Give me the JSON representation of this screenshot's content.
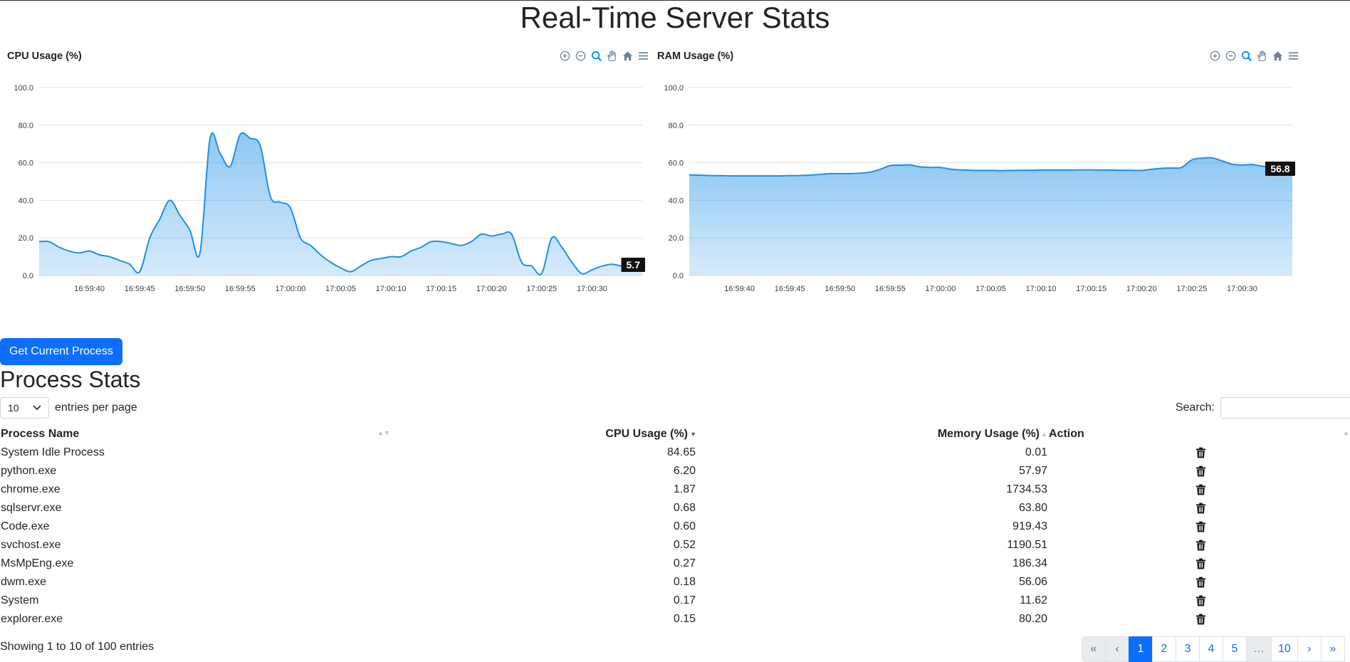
{
  "page": {
    "title": "Real-Time Server Stats"
  },
  "charts": [
    {
      "id": "cpu",
      "title": "CPU Usage (%)",
      "current_label": "5.7",
      "toolbar": [
        "zoom-in-icon",
        "zoom-out-icon",
        "zoom-selection-icon",
        "pan-hand-icon",
        "reset-home-icon",
        "menu-icon"
      ]
    },
    {
      "id": "ram",
      "title": "RAM Usage (%)",
      "current_label": "56.8",
      "toolbar": [
        "zoom-in-icon",
        "zoom-out-icon",
        "zoom-selection-icon",
        "pan-hand-icon",
        "reset-home-icon",
        "menu-icon"
      ]
    }
  ],
  "chart_data": [
    {
      "type": "area",
      "title": "CPU Usage (%)",
      "y_ticks": [
        "0.0",
        "20.0",
        "40.0",
        "60.0",
        "80.0",
        "100.0"
      ],
      "ylim": [
        0,
        100
      ],
      "x_range": [
        "16:59:35",
        "17:00:35"
      ],
      "x_ticks": [
        "16:59:40",
        "16:59:45",
        "16:59:50",
        "16:59:55",
        "17:00:00",
        "17:00:05",
        "17:00:10",
        "17:00:15",
        "17:00:20",
        "17:00:25",
        "17:00:30"
      ],
      "grid": true,
      "color": "#1e90e8",
      "x": [
        "16:59:35",
        "16:59:36",
        "16:59:37",
        "16:59:38",
        "16:59:39",
        "16:59:40",
        "16:59:41",
        "16:59:42",
        "16:59:43",
        "16:59:44",
        "16:59:45",
        "16:59:46",
        "16:59:47",
        "16:59:48",
        "16:59:49",
        "16:59:50",
        "16:59:51",
        "16:59:52",
        "16:59:53",
        "16:59:54",
        "16:59:55",
        "16:59:56",
        "16:59:57",
        "16:59:58",
        "16:59:59",
        "17:00:00",
        "17:00:01",
        "17:00:02",
        "17:00:03",
        "17:00:04",
        "17:00:05",
        "17:00:06",
        "17:00:07",
        "17:00:08",
        "17:00:09",
        "17:00:10",
        "17:00:11",
        "17:00:12",
        "17:00:13",
        "17:00:14",
        "17:00:15",
        "17:00:16",
        "17:00:17",
        "17:00:18",
        "17:00:19",
        "17:00:20",
        "17:00:21",
        "17:00:22",
        "17:00:23",
        "17:00:24",
        "17:00:25",
        "17:00:26",
        "17:00:27",
        "17:00:28",
        "17:00:29",
        "17:00:30",
        "17:00:31",
        "17:00:32",
        "17:00:33",
        "17:00:34",
        "17:00:35"
      ],
      "values": [
        18,
        18,
        15,
        13,
        12,
        13,
        11,
        10,
        8,
        6,
        2,
        20,
        30,
        40,
        32,
        24,
        12,
        73,
        65,
        58,
        75,
        73,
        69,
        42,
        39,
        36,
        20,
        16,
        11,
        7,
        4,
        2,
        5,
        8,
        9,
        10,
        10,
        13,
        15,
        18,
        18,
        17,
        16,
        18,
        22,
        21,
        22,
        22,
        7,
        5,
        1,
        20,
        15,
        7,
        1,
        3,
        5,
        6,
        5,
        6,
        5.7
      ]
    },
    {
      "type": "area",
      "title": "RAM Usage (%)",
      "y_ticks": [
        "0.0",
        "20.0",
        "40.0",
        "60.0",
        "80.0",
        "100.0"
      ],
      "ylim": [
        0,
        100
      ],
      "x_range": [
        "16:59:35",
        "17:00:35"
      ],
      "x_ticks": [
        "16:59:40",
        "16:59:45",
        "16:59:50",
        "16:59:55",
        "17:00:00",
        "17:00:05",
        "17:00:10",
        "17:00:15",
        "17:00:20",
        "17:00:25",
        "17:00:30"
      ],
      "grid": true,
      "color": "#1e90e8",
      "x": [
        "16:59:35",
        "16:59:36",
        "16:59:37",
        "16:59:38",
        "16:59:39",
        "16:59:40",
        "16:59:41",
        "16:59:42",
        "16:59:43",
        "16:59:44",
        "16:59:45",
        "16:59:46",
        "16:59:47",
        "16:59:48",
        "16:59:49",
        "16:59:50",
        "16:59:51",
        "16:59:52",
        "16:59:53",
        "16:59:54",
        "16:59:55",
        "16:59:56",
        "16:59:57",
        "16:59:58",
        "16:59:59",
        "17:00:00",
        "17:00:01",
        "17:00:02",
        "17:00:03",
        "17:00:04",
        "17:00:05",
        "17:00:06",
        "17:00:07",
        "17:00:08",
        "17:00:09",
        "17:00:10",
        "17:00:11",
        "17:00:12",
        "17:00:13",
        "17:00:14",
        "17:00:15",
        "17:00:16",
        "17:00:17",
        "17:00:18",
        "17:00:19",
        "17:00:20",
        "17:00:21",
        "17:00:22",
        "17:00:23",
        "17:00:24",
        "17:00:25",
        "17:00:26",
        "17:00:27",
        "17:00:28",
        "17:00:29",
        "17:00:30",
        "17:00:31",
        "17:00:32",
        "17:00:33",
        "17:00:34",
        "17:00:35"
      ],
      "values": [
        53.5,
        53.4,
        53.2,
        53.1,
        53,
        53,
        53,
        53,
        53,
        53,
        53.1,
        53.2,
        53.4,
        53.8,
        54.2,
        54.2,
        54.2,
        54.4,
        55,
        56.5,
        58.5,
        58.7,
        58.8,
        57.8,
        57.5,
        57.5,
        56.6,
        56.2,
        56,
        55.9,
        55.9,
        55.8,
        55.9,
        56,
        56,
        56.1,
        56.1,
        56.1,
        56.1,
        56.2,
        56.2,
        56.1,
        56.1,
        56,
        56,
        55.9,
        56.5,
        57,
        57.2,
        57.5,
        61.5,
        62.4,
        62.6,
        61,
        59.2,
        58.8,
        59,
        58.2,
        57.4,
        57,
        56.8
      ]
    }
  ],
  "actions": {
    "get_process_label": "Get Current Process"
  },
  "process_section": {
    "title": "Process Stats",
    "length_value": "10",
    "length_suffix": "entries per page",
    "search_label": "Search:",
    "search_value": "",
    "columns": [
      "Process Name",
      "CPU Usage (%)",
      "Memory Usage (%)",
      "Action"
    ],
    "sorted_column": "CPU Usage (%)",
    "sort_direction": "descending",
    "rows": [
      {
        "name": "System Idle Process",
        "cpu": "84.65",
        "mem": "0.01"
      },
      {
        "name": "python.exe",
        "cpu": "6.20",
        "mem": "57.97"
      },
      {
        "name": "chrome.exe",
        "cpu": "1.87",
        "mem": "1734.53"
      },
      {
        "name": "sqlservr.exe",
        "cpu": "0.68",
        "mem": "63.80"
      },
      {
        "name": "Code.exe",
        "cpu": "0.60",
        "mem": "919.43"
      },
      {
        "name": "svchost.exe",
        "cpu": "0.52",
        "mem": "1190.51"
      },
      {
        "name": "MsMpEng.exe",
        "cpu": "0.27",
        "mem": "186.34"
      },
      {
        "name": "dwm.exe",
        "cpu": "0.18",
        "mem": "56.06"
      },
      {
        "name": "System",
        "cpu": "0.17",
        "mem": "11.62"
      },
      {
        "name": "explorer.exe",
        "cpu": "0.15",
        "mem": "80.20"
      }
    ],
    "row_action_icon": "trash-icon",
    "info": "Showing 1 to 10 of 100 entries",
    "pagination": {
      "first": "«",
      "prev": "‹",
      "pages": [
        "1",
        "2",
        "3",
        "4",
        "5"
      ],
      "ellipsis": "…",
      "last_page": "10",
      "next": "›",
      "last": "»",
      "active": "1"
    }
  }
}
